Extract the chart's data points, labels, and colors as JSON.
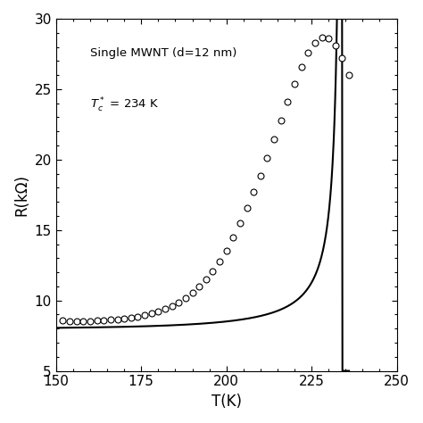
{
  "xlabel": "T(K)",
  "ylabel": "R(kΩ)",
  "annotation1": "Single MWNT (d=12 nm)",
  "annotation2": "$T_c^*$ = 234 K",
  "xlim": [
    150,
    250
  ],
  "ylim": [
    5,
    30
  ],
  "xticks": [
    150,
    175,
    200,
    225,
    250
  ],
  "yticks": [
    5,
    10,
    15,
    20,
    25,
    30
  ],
  "Tc": 234.0,
  "T_data": [
    152,
    154,
    156,
    158,
    160,
    162,
    164,
    166,
    168,
    170,
    172,
    174,
    176,
    178,
    180,
    182,
    184,
    186,
    188,
    190,
    192,
    194,
    196,
    198,
    200,
    202,
    204,
    206,
    208,
    210,
    212,
    214,
    216,
    218,
    220,
    222,
    224,
    226,
    228,
    230,
    232,
    234,
    236
  ],
  "R_data": [
    8.6,
    8.55,
    8.52,
    8.53,
    8.55,
    8.57,
    8.6,
    8.63,
    8.67,
    8.72,
    8.78,
    8.86,
    8.95,
    9.07,
    9.22,
    9.4,
    9.62,
    9.88,
    10.2,
    10.57,
    11.0,
    11.5,
    12.08,
    12.75,
    13.55,
    14.45,
    15.48,
    16.55,
    17.68,
    18.88,
    20.12,
    21.42,
    22.78,
    24.1,
    25.38,
    26.55,
    27.6,
    28.3,
    28.7,
    28.6,
    28.1,
    27.2,
    26.0
  ],
  "line_color": "#000000",
  "marker_facecolor": "white",
  "marker_edgecolor": "#000000",
  "marker_size": 5.0,
  "marker_lw": 0.8,
  "line_width": 1.5,
  "background_color": "#ffffff",
  "fig_width": 4.74,
  "fig_height": 4.74,
  "dpi": 100
}
